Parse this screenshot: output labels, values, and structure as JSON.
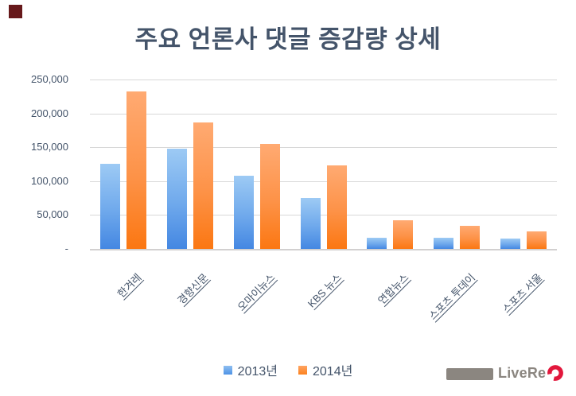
{
  "chart_data": {
    "type": "bar",
    "title": "주요 언론사 댓글 증감량 상세",
    "categories": [
      "한겨레",
      "경향신문",
      "오마이뉴스",
      "KBS 뉴스",
      "연합뉴스",
      "스포츠 투데이",
      "스포츠 서울"
    ],
    "series": [
      {
        "name": "2013년",
        "color_top": "#9DCAF4",
        "color_bottom": "#4487E2",
        "values": [
          126000,
          148000,
          108000,
          75000,
          17000,
          17000,
          15500
        ]
      },
      {
        "name": "2014년",
        "color_top": "#FFAA72",
        "color_bottom": "#FB7712",
        "values": [
          233000,
          187000,
          155000,
          123000,
          42000,
          34000,
          26000
        ]
      }
    ],
    "ylim": [
      0,
      250000
    ],
    "ytick_interval": 50000,
    "yticks": [
      {
        "value": 250000,
        "label": "250,000"
      },
      {
        "value": 200000,
        "label": "200,000"
      },
      {
        "value": 150000,
        "label": "150,000"
      },
      {
        "value": 100000,
        "label": "100,000"
      },
      {
        "value": 50000,
        "label": "50,000"
      },
      {
        "value": 0,
        "label": "-"
      }
    ],
    "grid": "horizontal",
    "legend_position": "bottom",
    "xlabel": "",
    "ylabel": ""
  },
  "legend": {
    "items": [
      {
        "label": "2013년",
        "color": "#5C9FE8"
      },
      {
        "label": "2014년",
        "color": "#FC821F"
      }
    ]
  },
  "branding": {
    "logo_text": "LiveRe",
    "logo_text_color": "#8B8680",
    "logo_icon_color": "#E2173C",
    "redacted_box_color": "#8B8680"
  },
  "decor": {
    "top_left_square_color": "#67191B",
    "gridline_color": "#D8D8D8",
    "text_color": "#44546A"
  }
}
